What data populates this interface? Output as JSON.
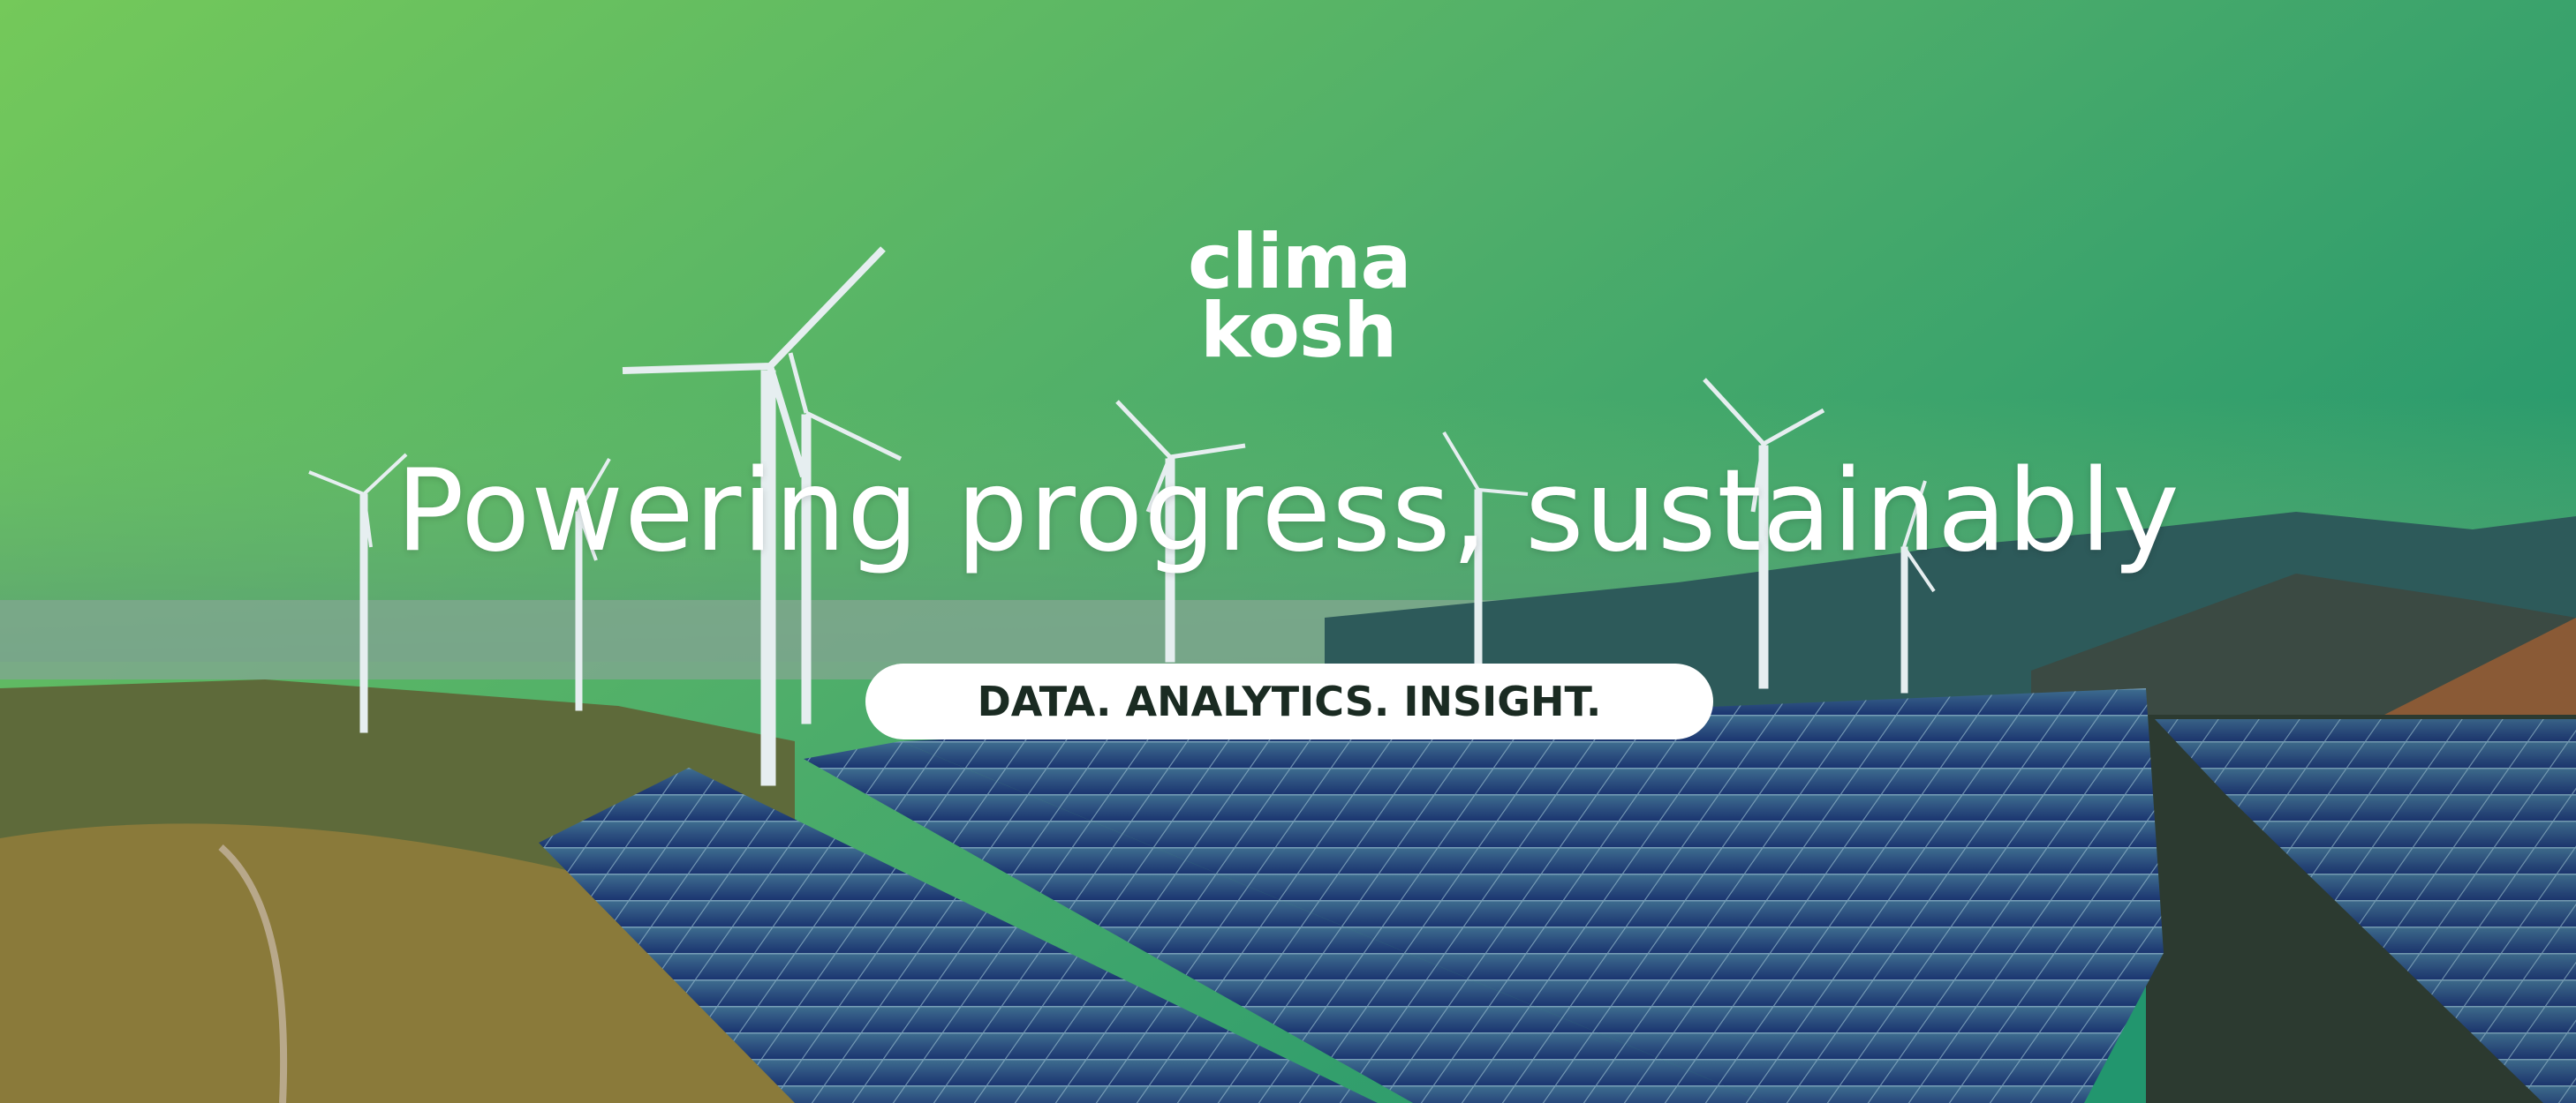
{
  "brand": {
    "logo_text": "climakosh",
    "logo_line1": "clima",
    "logo_line2": "kosh"
  },
  "hero": {
    "headline": "Powering progress, sustainably",
    "tagline": "DATA. ANALYTICS. INSIGHT."
  },
  "colors": {
    "sky_top_left": "#74c95a",
    "sky_top_right": "#2a9a68",
    "panel_blue": "#1f3f78",
    "text": "#ffffff",
    "pill_bg": "#ffffff",
    "pill_text": "#1a2b22"
  }
}
